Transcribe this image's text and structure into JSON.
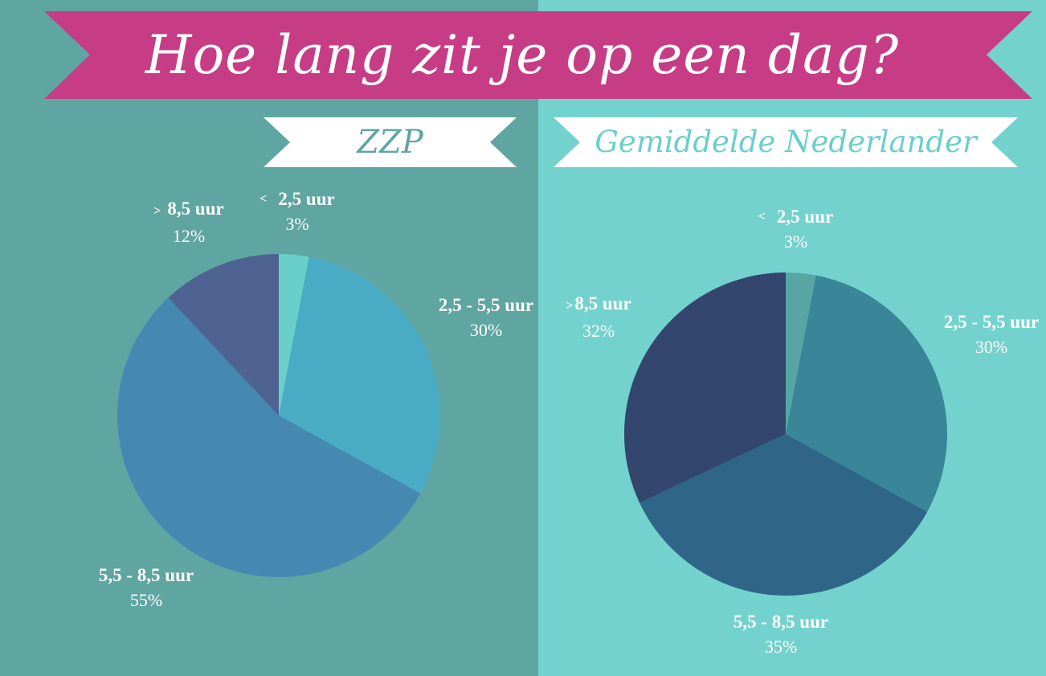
{
  "title": "Hoe lang zit je op een dag?",
  "chart_data": [
    {
      "type": "pie",
      "title": "ZZP",
      "slices": [
        {
          "label": "< 2,5 uur",
          "prefix": "<",
          "category": "2,5 uur",
          "value": 3,
          "value_label": "3%",
          "color": "#6acfcb"
        },
        {
          "label": "2,5 - 5,5 uur",
          "prefix": "",
          "category": "2,5 - 5,5 uur",
          "value": 30,
          "value_label": "30%",
          "color": "#4aabc5"
        },
        {
          "label": "5,5 - 8,5 uur",
          "prefix": "",
          "category": "5,5 - 8,5 uur",
          "value": 55,
          "value_label": "55%",
          "color": "#4588b2"
        },
        {
          "label": "> 8,5 uur",
          "prefix": ">",
          "category": "8,5 uur",
          "value": 12,
          "value_label": "12%",
          "color": "#4e6392"
        }
      ]
    },
    {
      "type": "pie",
      "title": "Gemiddelde Nederlander",
      "slices": [
        {
          "label": "< 2,5 uur",
          "prefix": "<",
          "category": "2,5 uur",
          "value": 3,
          "value_label": "3%",
          "color": "#58a6a4"
        },
        {
          "label": "2,5 - 5,5 uur",
          "prefix": "",
          "category": "2,5 - 5,5 uur",
          "value": 30,
          "value_label": "30%",
          "color": "#388697"
        },
        {
          "label": "5,5 - 8,5 uur",
          "prefix": "",
          "category": "5,5 - 8,5 uur",
          "value": 35,
          "value_label": "35%",
          "color": "#2f6688"
        },
        {
          "label": "> 8,5 uur",
          "prefix": ">",
          "category": "8,5 uur",
          "value": 32,
          "value_label": "32%",
          "color": "#33466e"
        }
      ]
    }
  ],
  "colors": {
    "title_ribbon": "#c63d86",
    "left_background": "#5fa5a1",
    "right_background": "#74d2ce",
    "subtitle_ribbon": "#ffffff",
    "zzp_title_text": "#5fa5a1",
    "nl_title_text": "#6acfcb"
  }
}
